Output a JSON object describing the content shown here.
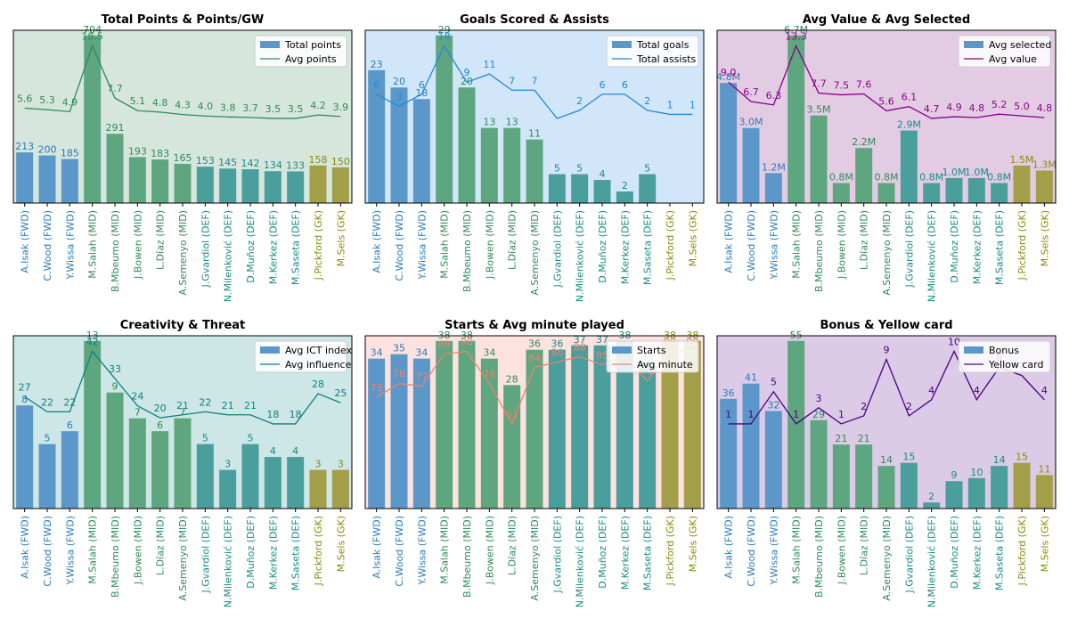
{
  "players": [
    {
      "name": "A.Isak (FWD)",
      "pos": "FWD"
    },
    {
      "name": "C.Wood (FWD)",
      "pos": "FWD"
    },
    {
      "name": "Y.Wissa (FWD)",
      "pos": "FWD"
    },
    {
      "name": "M.Salah (MID)",
      "pos": "MID"
    },
    {
      "name": "B.Mbeumo (MID)",
      "pos": "MID"
    },
    {
      "name": "J.Bowen (MID)",
      "pos": "MID"
    },
    {
      "name": "L.Díaz (MID)",
      "pos": "MID"
    },
    {
      "name": "A.Semenyo (MID)",
      "pos": "MID"
    },
    {
      "name": "J.Gvardiol (DEF)",
      "pos": "DEF"
    },
    {
      "name": "N.Milenković (DEF)",
      "pos": "DEF"
    },
    {
      "name": "D.Muñoz (DEF)",
      "pos": "DEF"
    },
    {
      "name": "M.Kerkez (DEF)",
      "pos": "DEF"
    },
    {
      "name": "M.Saseta (DEF)",
      "pos": "DEF"
    },
    {
      "name": "J.Pickford (GK)",
      "pos": "GK"
    },
    {
      "name": "M.Sels (GK)",
      "pos": "GK"
    }
  ],
  "position_colors": {
    "FWD": "#2b7bba",
    "MID": "#2e8b57",
    "DEF": "#178a8a",
    "GK": "#8a8a10"
  },
  "bar_colors": {
    "FWD": "#5b98c9",
    "MID": "#5ea67f",
    "DEF": "#4a9e9c",
    "GK": "#a39f48"
  },
  "chart_data": [
    {
      "type": "bar",
      "title": "Total Points & Points/GW",
      "background": "#d6e6dc",
      "line_color": "#2e8b57",
      "series": [
        {
          "name": "Total points",
          "kind": "bar",
          "values": [
            213,
            200,
            185,
            704,
            291,
            193,
            183,
            165,
            153,
            145,
            142,
            134,
            133,
            158,
            150
          ],
          "labels": [
            "213",
            "200",
            "185",
            "704",
            "291",
            "193",
            "183",
            "165",
            "153",
            "145",
            "142",
            "134",
            "133",
            "158",
            "150"
          ]
        },
        {
          "name": "Avg points",
          "kind": "line",
          "values": [
            5.6,
            5.3,
            4.9,
            18.5,
            7.7,
            5.1,
            4.8,
            4.3,
            4.0,
            3.8,
            3.7,
            3.5,
            3.5,
            4.2,
            3.9
          ],
          "labels": [
            "5.6",
            "5.3",
            "4.9",
            "18.5",
            "7.7",
            "5.1",
            "4.8",
            "4.3",
            "4.0",
            "3.8",
            "3.7",
            "3.5",
            "3.5",
            "4.2",
            "3.9"
          ]
        }
      ],
      "legend_position": "top-right"
    },
    {
      "type": "bar",
      "title": "Goals Scored & Assists",
      "background": "#d2e6fa",
      "line_color": "#2288dd",
      "series": [
        {
          "name": "Total goals",
          "kind": "bar",
          "values": [
            23,
            20,
            18,
            29,
            20,
            13,
            13,
            11,
            5,
            5,
            4,
            2,
            5,
            0,
            0
          ],
          "labels": [
            "23",
            "20",
            "18",
            "29",
            "20",
            "13",
            "13",
            "11",
            "5",
            "5",
            "4",
            "2",
            "5",
            "",
            ""
          ]
        },
        {
          "name": "Total assists",
          "kind": "line",
          "values": [
            6,
            3,
            6,
            18,
            9,
            11,
            7,
            7,
            0,
            2,
            6,
            6,
            2,
            1,
            1
          ],
          "labels": [
            "6",
            "3",
            "6",
            "18",
            "9",
            "11",
            "7",
            "7",
            "",
            "2",
            "6",
            "6",
            "2",
            "1",
            "1"
          ]
        }
      ],
      "legend_position": "top-right"
    },
    {
      "type": "bar",
      "title": "Avg Value & Avg Selected",
      "background": "#e3cce3",
      "line_color": "#8b008b",
      "series": [
        {
          "name": "Avg selected",
          "kind": "bar",
          "values": [
            4.8,
            3.0,
            1.2,
            6.7,
            3.5,
            0.8,
            2.2,
            0.8,
            2.9,
            0.8,
            1.0,
            1.0,
            0.8,
            1.5,
            1.3
          ],
          "labels": [
            "4.8M",
            "3.0M",
            "1.2M",
            "6.7M",
            "3.5M",
            "0.8M",
            "2.2M",
            "0.8M",
            "2.9M",
            "0.8M",
            "1.0M",
            "1.0M",
            "0.8M",
            "1.5M",
            "1.3M"
          ]
        },
        {
          "name": "Avg value",
          "kind": "line",
          "values": [
            9.0,
            6.7,
            6.3,
            13.3,
            7.7,
            7.5,
            7.6,
            5.6,
            6.1,
            4.7,
            4.9,
            4.8,
            5.2,
            5.0,
            4.8
          ],
          "labels": [
            "9.0",
            "6.7",
            "6.3",
            "13.3",
            "7.7",
            "7.5",
            "7.6",
            "5.6",
            "6.1",
            "4.7",
            "4.9",
            "4.8",
            "5.2",
            "5.0",
            "4.8"
          ]
        }
      ],
      "legend_position": "top-right"
    },
    {
      "type": "bar",
      "title": "Creativity & Threat",
      "background": "#cde6e6",
      "line_color": "#108080",
      "series": [
        {
          "name": "Avg ICT index",
          "kind": "bar",
          "values": [
            8,
            5,
            6,
            13,
            9,
            7,
            6,
            7,
            5,
            3,
            5,
            4,
            4,
            3,
            3
          ],
          "labels": [
            "8",
            "5",
            "6",
            "13",
            "9",
            "7",
            "6",
            "7",
            "5",
            "3",
            "5",
            "4",
            "4",
            "3",
            "3"
          ]
        },
        {
          "name": "Avg influence",
          "kind": "line",
          "values": [
            27,
            22,
            22,
            42,
            33,
            24,
            20,
            21,
            22,
            21,
            21,
            18,
            18,
            28,
            25
          ],
          "labels": [
            "27",
            "22",
            "22",
            "42",
            "33",
            "24",
            "20",
            "21",
            "22",
            "21",
            "21",
            "18",
            "18",
            "28",
            "25"
          ]
        }
      ],
      "legend_position": "top-right"
    },
    {
      "type": "bar",
      "title": "Starts & Avg minute played",
      "background": "#fde2e0",
      "line_color": "#f08070",
      "series": [
        {
          "name": "Starts",
          "kind": "bar",
          "values": [
            34,
            35,
            34,
            38,
            38,
            34,
            28,
            36,
            36,
            37,
            37,
            38,
            33,
            38,
            38
          ],
          "labels": [
            "34",
            "35",
            "34",
            "38",
            "38",
            "34",
            "28",
            "36",
            "36",
            "37",
            "37",
            "38",
            "33",
            "38",
            "38"
          ]
        },
        {
          "name": "Avg minute",
          "kind": "line",
          "values": [
            73,
            78,
            77,
            89,
            90,
            78,
            63,
            84,
            86,
            88,
            85,
            88,
            79,
            90,
            90
          ],
          "labels": [
            "73",
            "78",
            "77",
            "89",
            "90",
            "78",
            "63",
            "84",
            "86",
            "88",
            "85",
            "88",
            "79",
            "90",
            "90"
          ]
        }
      ],
      "legend_position": "top-right"
    },
    {
      "type": "bar",
      "title": "Bonus & Yellow card",
      "background": "#dccbe6",
      "line_color": "#4b0082",
      "series": [
        {
          "name": "Bonus",
          "kind": "bar",
          "values": [
            36,
            41,
            32,
            55,
            29,
            21,
            21,
            14,
            15,
            2,
            9,
            10,
            14,
            15,
            11
          ],
          "labels": [
            "36",
            "41",
            "32",
            "55",
            "29",
            "21",
            "21",
            "14",
            "15",
            "2",
            "9",
            "10",
            "14",
            "15",
            "11"
          ]
        },
        {
          "name": "Yellow card",
          "kind": "line",
          "values": [
            1,
            1,
            5,
            1,
            3,
            1,
            2,
            9,
            2,
            4,
            10,
            4,
            8,
            7,
            4
          ],
          "labels": [
            "1",
            "1",
            "5",
            "1",
            "3",
            "1",
            "2",
            "9",
            "2",
            "4",
            "10",
            "4",
            "8",
            "7",
            "4"
          ]
        }
      ],
      "legend_position": "top-right"
    }
  ]
}
